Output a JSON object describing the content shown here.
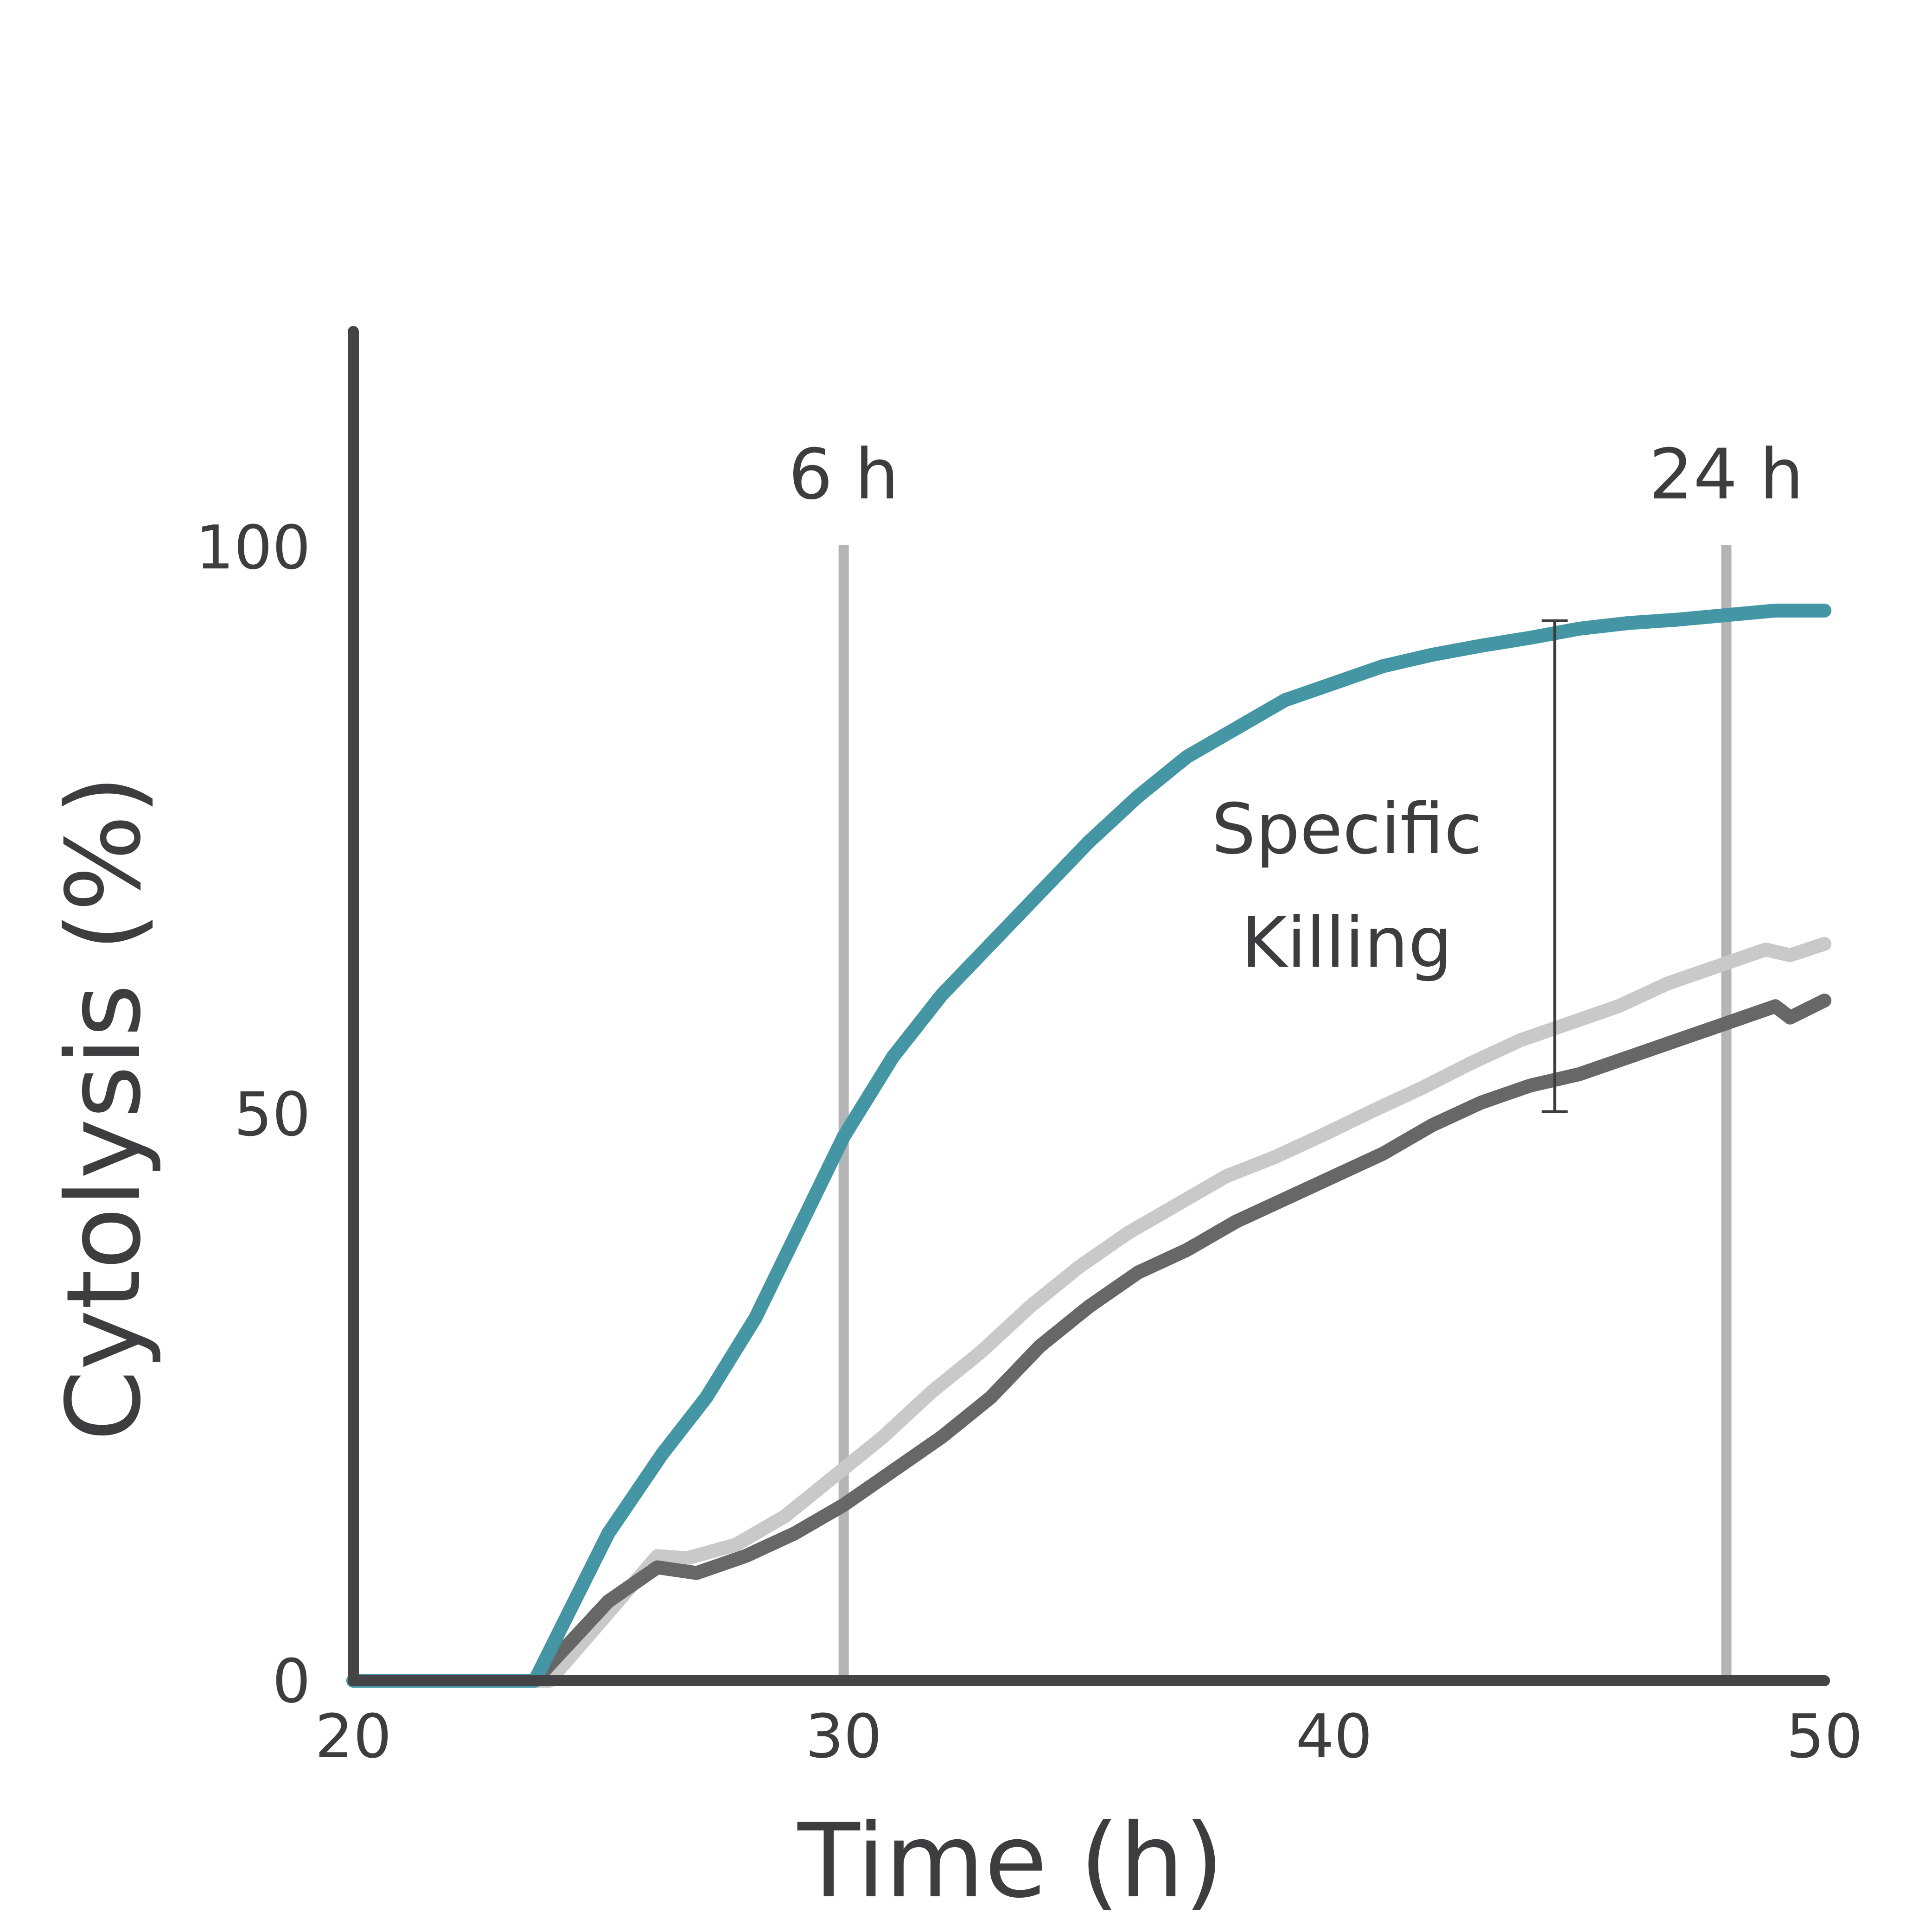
{
  "chart_data": {
    "type": "line",
    "title": "",
    "xlabel": "Time (h)",
    "ylabel": "Cytolysis (%)",
    "xlim": [
      20,
      50
    ],
    "ylim": [
      0,
      100
    ],
    "x_ticks": [
      20,
      30,
      40,
      50
    ],
    "x_tick_labels": [
      "20",
      "30",
      "40",
      "50"
    ],
    "y_ticks": [
      0,
      50,
      100
    ],
    "y_tick_labels": [
      "0",
      "50",
      "100"
    ],
    "grid": false,
    "legend": "none",
    "vertical_markers": [
      {
        "x": 30,
        "label": "6 h",
        "color": "#b5b5b7"
      },
      {
        "x": 48,
        "label": "24 h",
        "color": "#b5b5b7"
      }
    ],
    "annotation": {
      "lines": [
        "Specific",
        "Killing"
      ],
      "x": 44.5,
      "y_top": 93.5,
      "y_bottom": 50.2
    },
    "series": [
      {
        "color": "#4496a5",
        "x": [
          20,
          23.7,
          25.2,
          26.3,
          27.2,
          28.2,
          29.1,
          30,
          31,
          32,
          33,
          34,
          35,
          36,
          37,
          38,
          39,
          40,
          41,
          42,
          43,
          44,
          45,
          46,
          47,
          48,
          49,
          49.3,
          50
        ],
        "y": [
          0,
          0,
          13,
          20,
          25,
          32,
          40,
          48,
          55,
          60.5,
          65,
          69.5,
          74,
          78,
          81.5,
          84,
          86.5,
          88,
          89.5,
          90.5,
          91.3,
          92,
          92.8,
          93.3,
          93.6,
          94,
          94.4,
          94.4,
          94.4
        ]
      },
      {
        "color": "#676767",
        "x": [
          20,
          23.7,
          25.2,
          26.2,
          27,
          28,
          29,
          30,
          31,
          32,
          33,
          34,
          35,
          36,
          37,
          38,
          39,
          40,
          41,
          42,
          43,
          44,
          45,
          46,
          47,
          48,
          49,
          49.3,
          50
        ],
        "y": [
          0,
          0,
          7,
          10,
          9.5,
          11,
          13,
          15.5,
          18.5,
          21.5,
          25,
          29.5,
          33,
          36,
          38,
          40.5,
          42.5,
          44.5,
          46.5,
          49,
          51,
          52.5,
          53.5,
          55,
          56.5,
          58,
          59.5,
          58.5,
          60
        ]
      },
      {
        "color": "#c9c9c9",
        "x": [
          20,
          24,
          26.2,
          26.8,
          27.8,
          28.8,
          29.8,
          30.8,
          31.8,
          32.8,
          33.8,
          34.8,
          35.8,
          36.8,
          37.8,
          38.8,
          39.8,
          40.8,
          41.8,
          42.8,
          43.8,
          44.8,
          45.8,
          46.8,
          47.8,
          48.8,
          49.3,
          50
        ],
        "y": [
          0,
          0,
          11,
          10.8,
          12,
          14.5,
          18,
          21.5,
          25.5,
          29,
          33,
          36.5,
          39.5,
          42,
          44.5,
          46.2,
          48.2,
          50.3,
          52.3,
          54.5,
          56.5,
          58,
          59.5,
          61.5,
          63,
          64.5,
          64,
          65
        ]
      }
    ]
  }
}
